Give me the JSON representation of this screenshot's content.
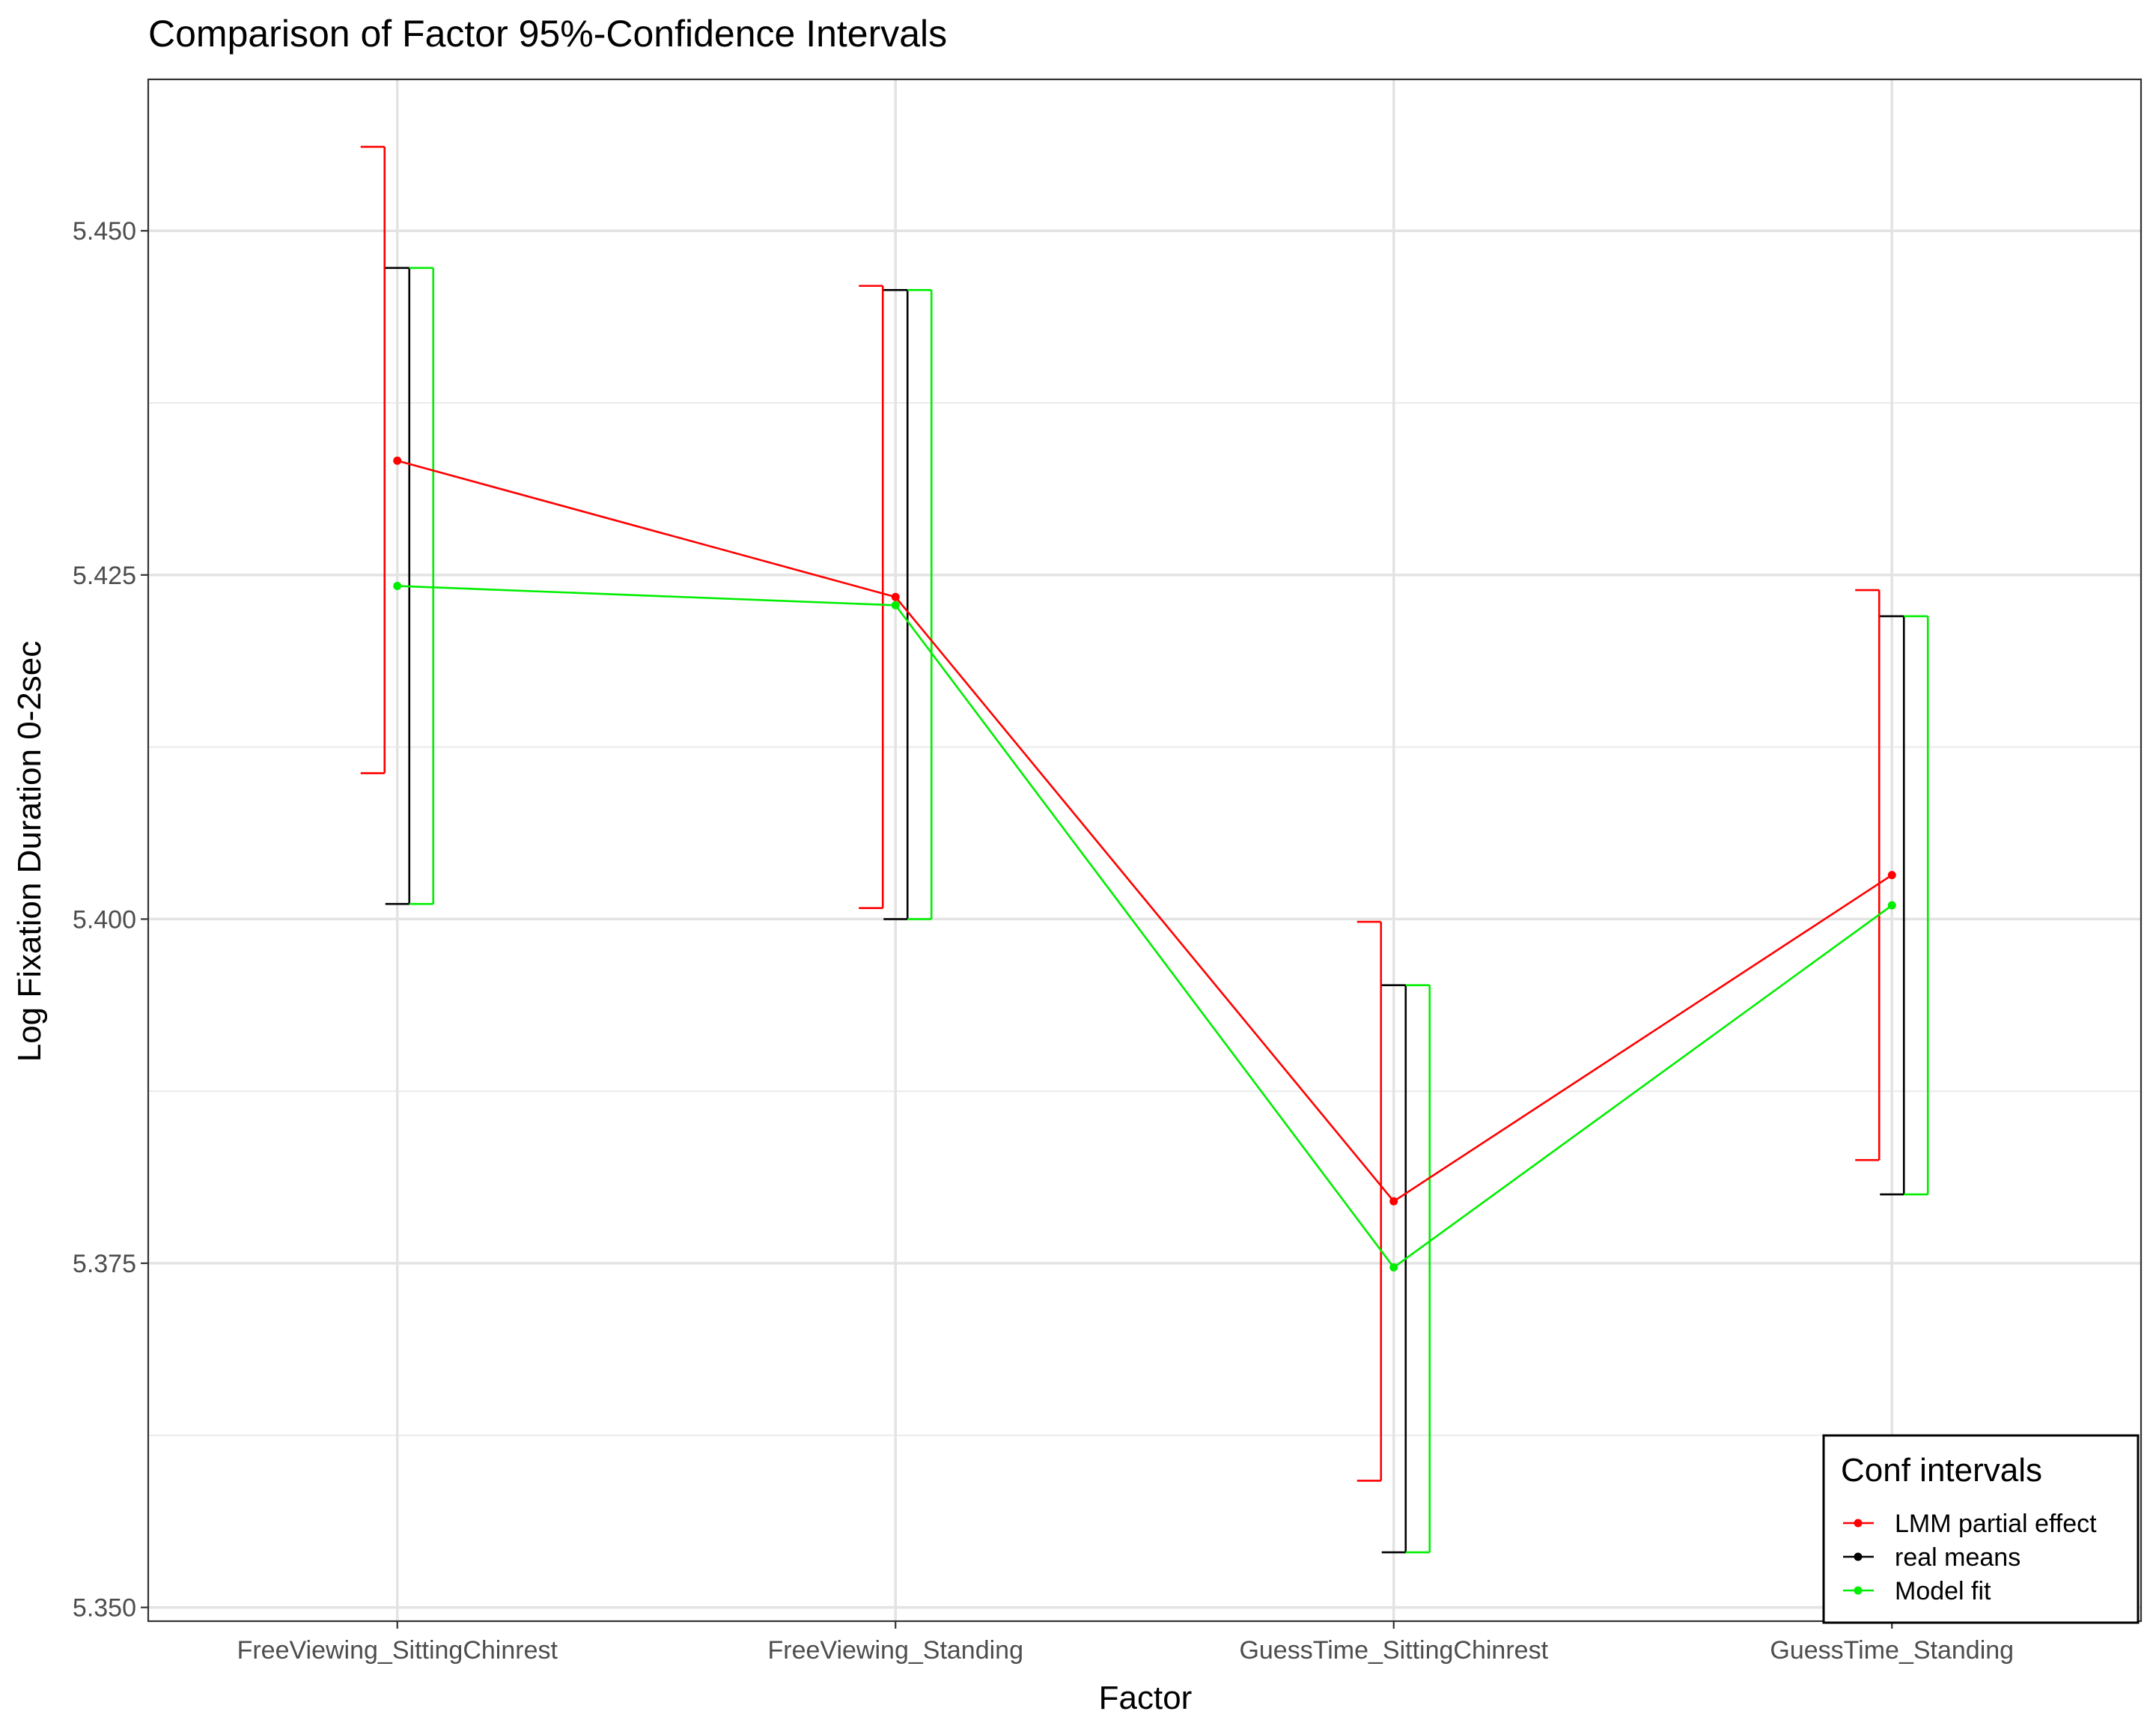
{
  "chart_data": {
    "type": "line",
    "title": "Comparison of Factor 95%-Confidence Intervals",
    "xlabel": "Factor",
    "ylabel": "Log Fixation Duration 0-2sec",
    "categories": [
      "FreeViewing_SittingChinrest",
      "FreeViewing_Standing",
      "GuessTime_SittingChinrest",
      "GuessTime_Standing"
    ],
    "ylim": [
      5.349,
      5.461
    ],
    "yticks": [
      "5.350",
      "5.375",
      "5.400",
      "5.425",
      "5.450"
    ],
    "grid": true,
    "legend": {
      "title": "Conf intervals",
      "position": "bottom-right",
      "entries": [
        "LMM partial effect",
        "real means",
        "Model fit"
      ]
    },
    "series": [
      {
        "name": "LMM partial effect",
        "color": "#ff0000",
        "values": [
          5.4333,
          5.4234,
          5.3795,
          5.4032
        ],
        "ci_lower": [
          5.4106,
          5.4008,
          5.3592,
          5.3825
        ],
        "ci_upper": [
          5.4561,
          5.446,
          5.3998,
          5.4239
        ],
        "show_line": true,
        "show_points": true
      },
      {
        "name": "real means",
        "color": "#000000",
        "values": [
          5.4242,
          5.4228,
          5.3747,
          5.401
        ],
        "ci_lower": [
          5.4011,
          5.4,
          5.354,
          5.38
        ],
        "ci_upper": [
          5.4473,
          5.4457,
          5.3952,
          5.422
        ],
        "show_line": false,
        "show_points": false
      },
      {
        "name": "Model fit",
        "color": "#00ee00",
        "values": [
          5.4242,
          5.4228,
          5.3747,
          5.401
        ],
        "ci_lower": [
          5.4011,
          5.4,
          5.354,
          5.38
        ],
        "ci_upper": [
          5.4473,
          5.4457,
          5.3952,
          5.422
        ],
        "show_line": true,
        "show_points": true
      }
    ]
  }
}
